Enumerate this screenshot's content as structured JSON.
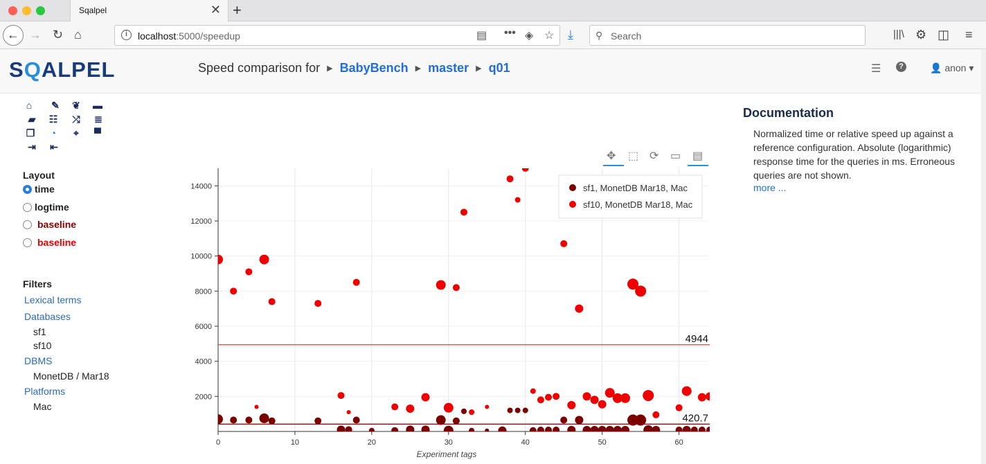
{
  "browser": {
    "tab_title": "Sqalpel",
    "url_host": "localhost",
    "url_rest": ":5000/speedup",
    "search_placeholder": "Search"
  },
  "app": {
    "logo_prefix": "S",
    "logo_q": "Q",
    "logo_suffix": "ALPEL",
    "breadcrumb": {
      "lead": "Speed comparison for",
      "items": [
        "BabyBench",
        "master",
        "q01"
      ]
    },
    "user": "anon"
  },
  "sidebar": {
    "layout_title": "Layout",
    "layout_options": [
      {
        "label": "time",
        "selected": true,
        "color": "#222222"
      },
      {
        "label": "logtime",
        "selected": false,
        "color": "#222222"
      },
      {
        "label": "baseline",
        "selected": false,
        "color": "#8b0000"
      },
      {
        "label": "baseline",
        "selected": false,
        "color": "#ee0000"
      }
    ],
    "filters_title": "Filters",
    "filters": [
      {
        "label": "Lexical terms",
        "type": "link"
      },
      {
        "label": "Databases",
        "type": "link"
      },
      {
        "label": "sf1",
        "type": "item"
      },
      {
        "label": "sf10",
        "type": "item"
      },
      {
        "label": "DBMS",
        "type": "link"
      },
      {
        "label": "MonetDB / Mar18",
        "type": "item"
      },
      {
        "label": "Platforms",
        "type": "link"
      },
      {
        "label": "Mac",
        "type": "item"
      }
    ]
  },
  "documentation": {
    "title": "Documentation",
    "text": "Normalized time or relative speed up against a reference configuration. Absolute (logarithmic) response time for the queries in ms. Erroneous queries are not shown.",
    "more": "more ..."
  },
  "chart_data": {
    "type": "scatter",
    "xlabel": "Experiment tags",
    "ylabel": "",
    "xlim": [
      0,
      64
    ],
    "ylim": [
      0,
      15000
    ],
    "xticks": [
      0,
      10,
      20,
      30,
      40,
      50,
      60
    ],
    "yticks": [
      2000,
      4000,
      6000,
      8000,
      10000,
      12000,
      14000
    ],
    "legend_position": "top-right",
    "baselines": [
      {
        "value": 4944,
        "label": "4944",
        "color": "#ff3333"
      },
      {
        "value": 420.7,
        "label": "420.7",
        "color": "#8b0000"
      }
    ],
    "series": [
      {
        "name": "sf1, MonetDB Mar18, Mac",
        "color": "#7a0000",
        "points": [
          [
            0,
            700,
            7
          ],
          [
            2,
            650,
            5
          ],
          [
            4,
            650,
            5
          ],
          [
            6,
            750,
            7
          ],
          [
            7,
            600,
            5
          ],
          [
            13,
            600,
            5
          ],
          [
            16,
            100,
            6
          ],
          [
            17,
            100,
            5
          ],
          [
            18,
            650,
            5
          ],
          [
            20,
            50,
            4
          ],
          [
            23,
            50,
            5
          ],
          [
            25,
            100,
            6
          ],
          [
            27,
            100,
            6
          ],
          [
            29,
            650,
            7
          ],
          [
            30,
            50,
            7
          ],
          [
            31,
            600,
            5
          ],
          [
            32,
            1150,
            4
          ],
          [
            33,
            50,
            4
          ],
          [
            35,
            50,
            3
          ],
          [
            37,
            50,
            6
          ],
          [
            38,
            1200,
            4
          ],
          [
            39,
            1200,
            4
          ],
          [
            40,
            1200,
            4
          ],
          [
            41,
            50,
            5
          ],
          [
            42,
            80,
            5
          ],
          [
            43,
            80,
            5
          ],
          [
            44,
            80,
            5
          ],
          [
            45,
            650,
            5
          ],
          [
            46,
            80,
            6
          ],
          [
            47,
            650,
            6
          ],
          [
            48,
            80,
            6
          ],
          [
            49,
            80,
            6
          ],
          [
            50,
            80,
            6
          ],
          [
            51,
            80,
            6
          ],
          [
            52,
            80,
            6
          ],
          [
            53,
            80,
            6
          ],
          [
            54,
            650,
            8
          ],
          [
            55,
            650,
            8
          ],
          [
            56,
            80,
            7
          ],
          [
            57,
            80,
            6
          ],
          [
            60,
            80,
            5
          ],
          [
            61,
            80,
            6
          ],
          [
            62,
            80,
            5
          ],
          [
            63,
            80,
            5
          ],
          [
            64,
            80,
            5
          ]
        ]
      },
      {
        "name": "sf10, MonetDB Mar18, Mac",
        "color": "#ee0000",
        "points": [
          [
            0,
            9800,
            7
          ],
          [
            2,
            8000,
            5
          ],
          [
            4,
            9100,
            5
          ],
          [
            5,
            1400,
            3
          ],
          [
            6,
            9800,
            7
          ],
          [
            7,
            7400,
            5
          ],
          [
            13,
            7300,
            5
          ],
          [
            16,
            2050,
            5
          ],
          [
            17,
            1100,
            3
          ],
          [
            18,
            8500,
            5
          ],
          [
            23,
            1400,
            5
          ],
          [
            25,
            1300,
            6
          ],
          [
            27,
            1950,
            6
          ],
          [
            29,
            8350,
            7
          ],
          [
            30,
            1350,
            7
          ],
          [
            31,
            8200,
            5
          ],
          [
            32,
            12500,
            5
          ],
          [
            33,
            1100,
            4
          ],
          [
            35,
            1400,
            3
          ],
          [
            38,
            14400,
            5
          ],
          [
            39,
            13200,
            4
          ],
          [
            40,
            15000,
            5
          ],
          [
            41,
            2300,
            4
          ],
          [
            42,
            1800,
            5
          ],
          [
            43,
            1950,
            5
          ],
          [
            44,
            2000,
            5
          ],
          [
            45,
            10700,
            5
          ],
          [
            46,
            1500,
            6
          ],
          [
            47,
            7000,
            6
          ],
          [
            48,
            2000,
            6
          ],
          [
            49,
            1800,
            6
          ],
          [
            50,
            1550,
            6
          ],
          [
            51,
            2200,
            7
          ],
          [
            52,
            1900,
            7
          ],
          [
            53,
            1900,
            7
          ],
          [
            54,
            8400,
            8
          ],
          [
            55,
            8000,
            8
          ],
          [
            56,
            2050,
            8
          ],
          [
            57,
            950,
            5
          ],
          [
            60,
            1350,
            5
          ],
          [
            61,
            2300,
            7
          ],
          [
            63,
            1950,
            6
          ],
          [
            64,
            2000,
            6
          ]
        ]
      }
    ]
  }
}
